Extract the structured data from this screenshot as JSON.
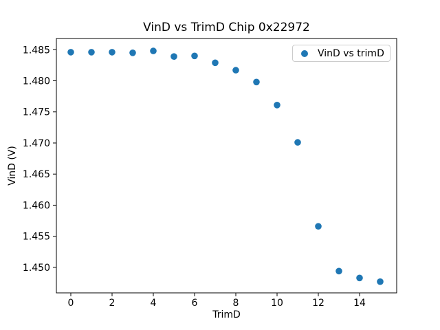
{
  "figure": {
    "background": "#ffffff"
  },
  "chart_data": {
    "type": "scatter",
    "title": "VinD vs TrimD Chip 0x22972",
    "xlabel": "TrimD",
    "ylabel": "VinD (V)",
    "grid": false,
    "legend": {
      "position": "upper right",
      "entries": [
        "VinD vs trimD"
      ]
    },
    "series": [
      {
        "name": "VinD vs trimD",
        "marker": "circle",
        "color": "#1f77b4",
        "x": [
          0,
          1,
          2,
          3,
          4,
          5,
          6,
          7,
          8,
          9,
          10,
          11,
          12,
          13,
          14,
          15
        ],
        "y": [
          1.4846,
          1.4846,
          1.4846,
          1.4845,
          1.4848,
          1.4839,
          1.484,
          1.4829,
          1.4817,
          1.4798,
          1.4761,
          1.4701,
          1.4566,
          1.4494,
          1.4483,
          1.4477
        ]
      }
    ],
    "xlim": [
      -0.7,
      15.8
    ],
    "ylim": [
      1.4459,
      1.4868
    ],
    "xticks": {
      "values": [
        0,
        2,
        4,
        6,
        8,
        10,
        12,
        14
      ],
      "labels": [
        "0",
        "2",
        "4",
        "6",
        "8",
        "10",
        "12",
        "14"
      ]
    },
    "yticks": {
      "values": [
        1.45,
        1.455,
        1.46,
        1.465,
        1.47,
        1.475,
        1.48,
        1.485
      ],
      "labels": [
        "1.450",
        "1.455",
        "1.460",
        "1.465",
        "1.470",
        "1.475",
        "1.480",
        "1.485"
      ]
    },
    "axis_color": "#000000"
  }
}
